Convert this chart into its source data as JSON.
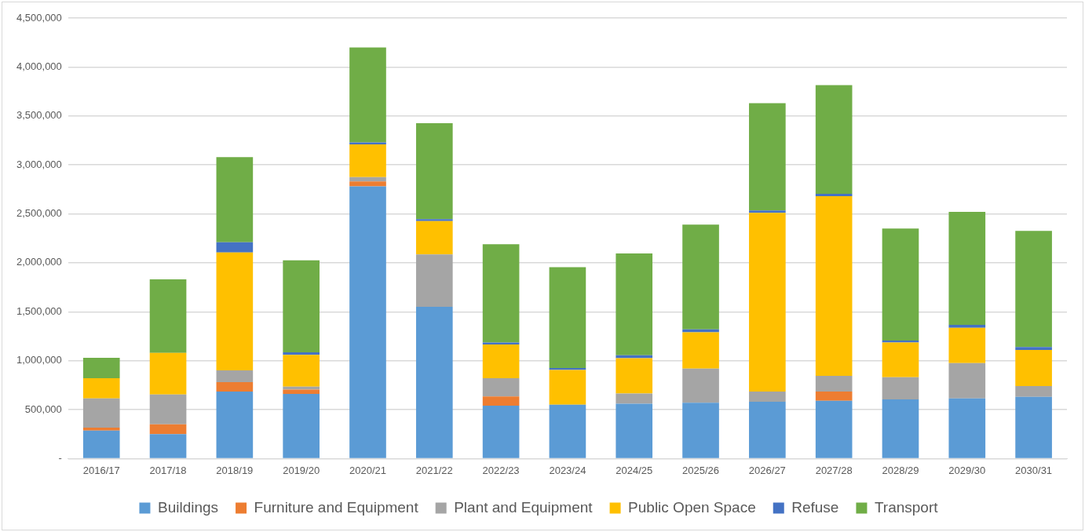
{
  "chart_data": {
    "type": "bar",
    "stacked": true,
    "categories": [
      "2016/17",
      "2017/18",
      "2018/19",
      "2019/20",
      "2020/21",
      "2021/22",
      "2022/23",
      "2023/24",
      "2024/25",
      "2025/26",
      "2026/27",
      "2027/28",
      "2028/29",
      "2029/30",
      "2030/31"
    ],
    "series": [
      {
        "name": "Buildings",
        "color": "#5b9bd5",
        "values": [
          285000,
          250000,
          685000,
          660000,
          2780000,
          1550000,
          540000,
          550000,
          560000,
          570000,
          580000,
          590000,
          605000,
          615000,
          630000
        ]
      },
      {
        "name": "Furniture and Equipment",
        "color": "#ed7d31",
        "values": [
          30000,
          100000,
          95000,
          45000,
          50000,
          0,
          95000,
          0,
          0,
          0,
          0,
          95000,
          0,
          0,
          0
        ]
      },
      {
        "name": "Plant and Equipment",
        "color": "#a5a5a5",
        "values": [
          300000,
          305000,
          120000,
          30000,
          45000,
          535000,
          185000,
          0,
          105000,
          350000,
          105000,
          160000,
          225000,
          360000,
          110000
        ]
      },
      {
        "name": "Public Open Space",
        "color": "#ffc000",
        "values": [
          205000,
          425000,
          1205000,
          325000,
          335000,
          340000,
          345000,
          355000,
          360000,
          370000,
          1825000,
          1835000,
          355000,
          360000,
          370000
        ]
      },
      {
        "name": "Refuse",
        "color": "#4472c4",
        "values": [
          0,
          0,
          105000,
          25000,
          20000,
          20000,
          20000,
          20000,
          30000,
          30000,
          25000,
          25000,
          20000,
          30000,
          30000
        ]
      },
      {
        "name": "Transport",
        "color": "#70ad47",
        "values": [
          210000,
          750000,
          870000,
          940000,
          970000,
          980000,
          1005000,
          1030000,
          1040000,
          1070000,
          1095000,
          1110000,
          1145000,
          1155000,
          1185000
        ]
      }
    ],
    "ylim": [
      0,
      4500000
    ],
    "yticks": [
      {
        "value": 0,
        "label": "-"
      },
      {
        "value": 500000,
        "label": "500,000"
      },
      {
        "value": 1000000,
        "label": "1,000,000"
      },
      {
        "value": 1500000,
        "label": "1,500,000"
      },
      {
        "value": 2000000,
        "label": "2,000,000"
      },
      {
        "value": 2500000,
        "label": "2,500,000"
      },
      {
        "value": 3000000,
        "label": "3,000,000"
      },
      {
        "value": 3500000,
        "label": "3,500,000"
      },
      {
        "value": 4000000,
        "label": "4,000,000"
      },
      {
        "value": 4500000,
        "label": "4,500,000"
      }
    ],
    "grid": "y",
    "legend": "bottom"
  }
}
